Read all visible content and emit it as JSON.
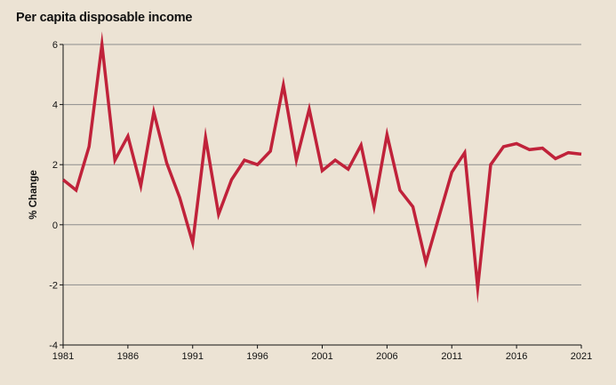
{
  "chart_data": {
    "type": "line",
    "title": "Per capita disposable income",
    "xlabel": "",
    "ylabel": "% Change",
    "xlim": [
      1981,
      2021
    ],
    "ylim": [
      -4,
      6
    ],
    "yticks": [
      -4,
      -2,
      0,
      2,
      4,
      6
    ],
    "xticks": [
      1981,
      1986,
      1991,
      1996,
      2001,
      2006,
      2011,
      2016,
      2021
    ],
    "grid": "horizontal",
    "line_color": "#c0223a",
    "series": [
      {
        "x": [
          1981,
          1982,
          1983,
          1984,
          1985,
          1986,
          1987,
          1988,
          1989,
          1990,
          1991,
          1992,
          1993,
          1994,
          1995,
          1996,
          1997,
          1998,
          1999,
          2000,
          2001,
          2002,
          2003,
          2004,
          2005,
          2006,
          2007,
          2008,
          2009,
          2010,
          2011,
          2012,
          2013,
          2014,
          2015,
          2016,
          2017,
          2018,
          2019,
          2020,
          2021
        ],
        "values": [
          1.5,
          1.15,
          2.6,
          6.0,
          2.15,
          2.95,
          1.3,
          3.75,
          2.05,
          0.9,
          -0.6,
          2.9,
          0.35,
          1.5,
          2.15,
          2.0,
          2.45,
          4.65,
          2.15,
          3.85,
          1.8,
          2.15,
          1.85,
          2.65,
          0.6,
          3.0,
          1.15,
          0.6,
          -1.25,
          0.25,
          1.75,
          2.4,
          -2.1,
          2.0,
          2.6,
          2.7,
          2.5,
          2.55,
          2.2,
          2.4,
          2.35
        ]
      }
    ]
  }
}
